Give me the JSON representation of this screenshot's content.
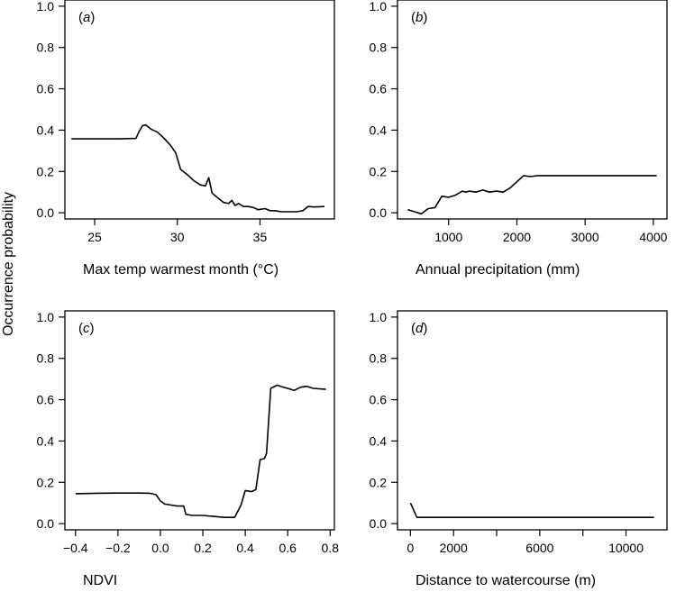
{
  "figure": {
    "shared_ylabel": "Occurrence probability"
  },
  "chart_data": [
    {
      "type": "line",
      "panel": "a",
      "tag_open": "(",
      "tag_letter": "a",
      "tag_close": ")",
      "xlabel": "Max temp warmest month (°C)",
      "ylabel": "Occurrence probability",
      "xlim": [
        23.2,
        39.5
      ],
      "ylim": [
        -0.03,
        1.03
      ],
      "xticks": [
        25,
        30,
        35
      ],
      "xtick_labels": [
        "25",
        "30",
        "35"
      ],
      "yticks": [
        0.0,
        0.2,
        0.4,
        0.6,
        0.8,
        1.0
      ],
      "ytick_labels": [
        "0.0",
        "0.2",
        "0.4",
        "0.6",
        "0.8",
        "1.0"
      ],
      "series": [
        {
          "x": [
            23.6,
            25.0,
            26.5,
            27.5,
            27.7,
            27.9,
            28.1,
            28.4,
            28.8,
            29.2,
            29.6,
            29.9,
            30.2,
            30.6,
            31.0,
            31.4,
            31.7,
            31.9,
            32.1,
            32.4,
            32.8,
            33.1,
            33.3,
            33.5,
            33.7,
            34.0,
            34.3,
            34.6,
            34.9,
            35.3,
            35.6,
            35.9,
            36.3,
            36.6,
            36.9,
            37.2,
            37.6,
            37.9,
            38.3,
            38.9
          ],
          "y": [
            0.358,
            0.358,
            0.358,
            0.36,
            0.395,
            0.422,
            0.425,
            0.405,
            0.39,
            0.36,
            0.325,
            0.29,
            0.21,
            0.185,
            0.155,
            0.135,
            0.13,
            0.17,
            0.095,
            0.075,
            0.05,
            0.045,
            0.06,
            0.035,
            0.045,
            0.03,
            0.03,
            0.025,
            0.015,
            0.02,
            0.01,
            0.01,
            0.005,
            0.005,
            0.005,
            0.005,
            0.01,
            0.03,
            0.028,
            0.03
          ]
        }
      ]
    },
    {
      "type": "line",
      "panel": "b",
      "tag_open": "(",
      "tag_letter": "b",
      "tag_close": ")",
      "xlabel": "Annual precipitation (mm)",
      "ylabel": "",
      "xlim": [
        250,
        4200
      ],
      "ylim": [
        -0.03,
        1.03
      ],
      "xticks": [
        1000,
        2000,
        3000,
        4000
      ],
      "xtick_labels": [
        "1000",
        "2000",
        "3000",
        "4000"
      ],
      "yticks": [
        0.0,
        0.2,
        0.4,
        0.6,
        0.8,
        1.0
      ],
      "ytick_labels": [
        "0.0",
        "0.2",
        "0.4",
        "0.6",
        "0.8",
        "1.0"
      ],
      "series": [
        {
          "x": [
            400,
            500,
            600,
            700,
            800,
            900,
            1000,
            1100,
            1200,
            1250,
            1300,
            1400,
            1500,
            1600,
            1700,
            1800,
            1900,
            2000,
            2100,
            2200,
            2300,
            3000,
            4050
          ],
          "y": [
            0.015,
            0.005,
            -0.005,
            0.02,
            0.025,
            0.08,
            0.075,
            0.085,
            0.105,
            0.1,
            0.105,
            0.1,
            0.11,
            0.1,
            0.105,
            0.1,
            0.12,
            0.15,
            0.18,
            0.175,
            0.18,
            0.18,
            0.18
          ]
        }
      ]
    },
    {
      "type": "line",
      "panel": "c",
      "tag_open": "(",
      "tag_letter": "c",
      "tag_close": ")",
      "xlabel": "NDVI",
      "ylabel": "",
      "xlim": [
        -0.45,
        0.82
      ],
      "ylim": [
        -0.03,
        1.03
      ],
      "xticks": [
        -0.4,
        -0.2,
        0.0,
        0.2,
        0.4,
        0.6,
        0.8
      ],
      "xtick_labels": [
        "−0.4",
        "−0.2",
        "0.0",
        "0.2",
        "0.4",
        "0.6",
        "0.8"
      ],
      "yticks": [
        0.0,
        0.2,
        0.4,
        0.6,
        0.8,
        1.0
      ],
      "ytick_labels": [
        "0.0",
        "0.2",
        "0.4",
        "0.6",
        "0.8",
        "1.0"
      ],
      "series": [
        {
          "x": [
            -0.4,
            -0.3,
            -0.2,
            -0.1,
            -0.05,
            -0.02,
            0.0,
            0.02,
            0.05,
            0.08,
            0.11,
            0.12,
            0.15,
            0.2,
            0.25,
            0.3,
            0.35,
            0.38,
            0.4,
            0.43,
            0.45,
            0.47,
            0.49,
            0.5,
            0.52,
            0.55,
            0.58,
            0.6,
            0.63,
            0.66,
            0.69,
            0.72,
            0.78
          ],
          "y": [
            0.145,
            0.147,
            0.148,
            0.148,
            0.147,
            0.14,
            0.11,
            0.095,
            0.09,
            0.085,
            0.085,
            0.045,
            0.04,
            0.04,
            0.035,
            0.03,
            0.03,
            0.09,
            0.16,
            0.155,
            0.165,
            0.31,
            0.315,
            0.34,
            0.655,
            0.67,
            0.66,
            0.655,
            0.645,
            0.66,
            0.665,
            0.655,
            0.65
          ]
        }
      ]
    },
    {
      "type": "line",
      "panel": "d",
      "tag_open": "(",
      "tag_letter": "d",
      "tag_close": ")",
      "xlabel": "Distance to watercourse (m)",
      "ylabel": "",
      "xlim": [
        -600,
        11900
      ],
      "ylim": [
        -0.03,
        1.03
      ],
      "xticks": [
        0,
        2000,
        4000,
        6000,
        8000,
        10000
      ],
      "xtick_labels": [
        "0",
        "2000",
        "",
        "6000",
        "",
        "10000"
      ],
      "yticks": [
        0.0,
        0.2,
        0.4,
        0.6,
        0.8,
        1.0
      ],
      "ytick_labels": [
        "0.0",
        "0.2",
        "0.4",
        "0.6",
        "0.8",
        "1.0"
      ],
      "series": [
        {
          "x": [
            0,
            300,
            1000,
            11300
          ],
          "y": [
            0.1,
            0.03,
            0.03,
            0.03
          ]
        }
      ]
    }
  ]
}
